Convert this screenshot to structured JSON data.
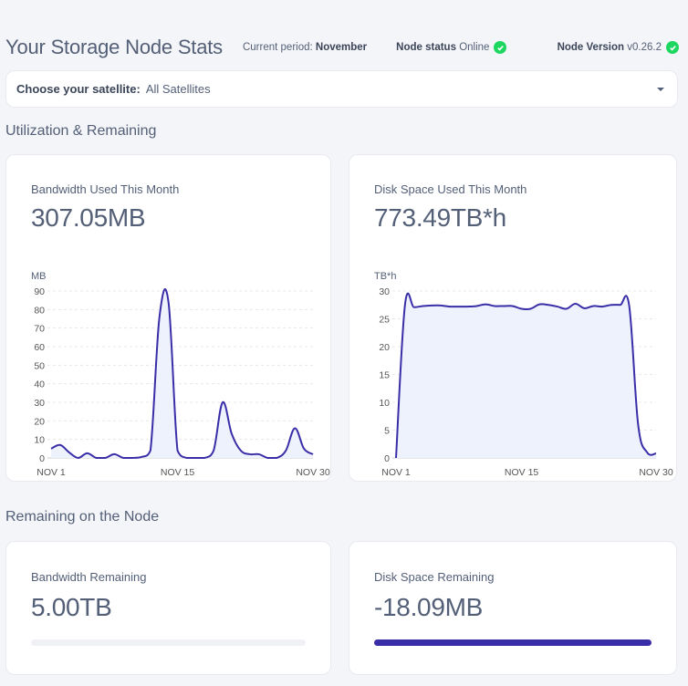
{
  "header": {
    "title": "Your Storage Node Stats",
    "period_label": "Current period:",
    "period_value": "November",
    "status_label": "Node status",
    "status_value": "Online",
    "version_label": "Node Version",
    "version_value": "v0.26.2"
  },
  "satellite": {
    "label": "Choose your satellite:",
    "value": "All Satellites"
  },
  "sections": {
    "utilization": "Utilization & Remaining",
    "remaining": "Remaining on the Node"
  },
  "cards": {
    "bandwidth_used": {
      "label": "Bandwidth Used This Month",
      "value": "307.05MB"
    },
    "disk_used": {
      "label": "Disk Space Used This Month",
      "value": "773.49TB*h"
    },
    "bandwidth_remaining": {
      "label": "Bandwidth Remaining",
      "value": "5.00TB",
      "fill": 0
    },
    "disk_remaining": {
      "label": "Disk Space Remaining",
      "value": "-18.09MB",
      "fill": 1
    }
  },
  "colors": {
    "accent": "#3a2ea8",
    "area": "#eef2fc",
    "online": "#1ed760"
  },
  "chart_data": [
    {
      "type": "area",
      "ylabel": "MB",
      "ylim": [
        0,
        90
      ],
      "yticks": [
        0,
        10,
        20,
        30,
        40,
        50,
        60,
        70,
        80,
        90
      ],
      "xticks": [
        "NOV 1",
        "NOV 15",
        "NOV 30"
      ],
      "x": [
        1,
        2,
        3,
        4,
        5,
        6,
        7,
        8,
        9,
        10,
        11,
        12,
        13,
        14,
        15,
        16,
        17,
        18,
        19,
        20,
        21,
        22,
        23,
        24,
        25,
        26,
        27,
        28,
        29,
        30
      ],
      "values": [
        5,
        7,
        3,
        0,
        2.5,
        0,
        0,
        2,
        0,
        0,
        0.5,
        4,
        76,
        84,
        4,
        0,
        0,
        0,
        4,
        30,
        13,
        4,
        2,
        2,
        0,
        0,
        4,
        16,
        5,
        2
      ]
    },
    {
      "type": "area",
      "ylabel": "TB*h",
      "ylim": [
        0,
        30
      ],
      "yticks": [
        0,
        5,
        10,
        15,
        20,
        25,
        30
      ],
      "xticks": [
        "NOV 1",
        "NOV 15",
        "NOV 30"
      ],
      "x": [
        1,
        2,
        3,
        4,
        5,
        6,
        7,
        8,
        9,
        10,
        11,
        12,
        13,
        14,
        15,
        16,
        17,
        18,
        19,
        20,
        21,
        22,
        23,
        24,
        25,
        26,
        27,
        28,
        29,
        30
      ],
      "values": [
        0,
        27.5,
        27.1,
        27.3,
        27.4,
        27.4,
        27.2,
        27.2,
        27.2,
        27.3,
        27.6,
        27.3,
        27.3,
        27.3,
        26.8,
        26.8,
        27.6,
        27.5,
        27.2,
        26.8,
        27.7,
        26.9,
        27.3,
        27.2,
        27.5,
        27.5,
        27.4,
        6,
        1,
        0.8
      ]
    }
  ]
}
